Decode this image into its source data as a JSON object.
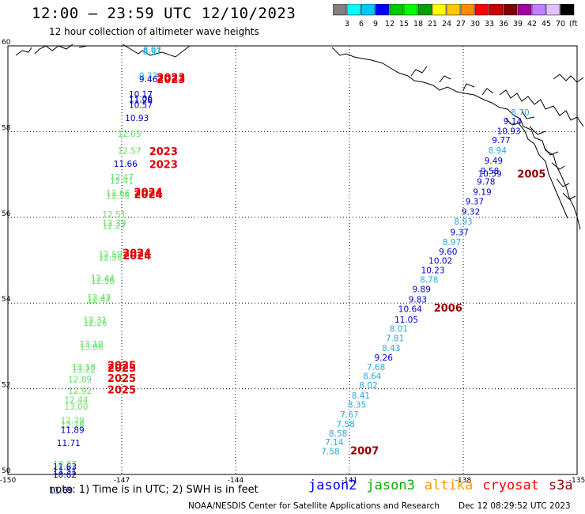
{
  "title": "12:00 – 23:59 UTC 12/10/2023",
  "subtitle": "12 hour collection of altimeter wave heights",
  "footer_note": "note:  1) Time is in UTC;  2) SWH is in feet",
  "credit": "NOAA/NESDIS Center for Satellite Applications and Research",
  "timestamp": "Dec 12 08:29:52 UTC 2023",
  "colors": {
    "jason2": "#0000cc",
    "jason3": "#2db82d",
    "altika": "#f08c00",
    "cryosat": "#e00000",
    "s3a": "#990000",
    "cyan": "#2aa8d8",
    "green": "#66e066",
    "grid": "#000000"
  },
  "legend": [
    {
      "label": "jason2",
      "color": "#0000ff"
    },
    {
      "label": "jason3",
      "color": "#00b000"
    },
    {
      "label": "altika",
      "color": "#ff9900"
    },
    {
      "label": "cryosat",
      "color": "#ff0000"
    },
    {
      "label": "s3a",
      "color": "#990000"
    }
  ],
  "colorbar": {
    "labels": [
      "3",
      "6",
      "9",
      "12",
      "15",
      "18",
      "21",
      "24",
      "27",
      "30",
      "33",
      "36",
      "39",
      "42",
      "45",
      "70",
      "(ft)"
    ],
    "colors": [
      "#808080",
      "#00ffff",
      "#00c8ff",
      "#0000ff",
      "#00c800",
      "#00ff00",
      "#00a000",
      "#ffff00",
      "#ffc800",
      "#ff8c00",
      "#ff0000",
      "#c80000",
      "#800000",
      "#a000a0",
      "#c080ff",
      "#e0c0ff",
      "#000000"
    ]
  },
  "chart_data": {
    "type": "scatter",
    "xlim": [
      -150,
      -135
    ],
    "ylim": [
      50,
      60
    ],
    "x_ticks": [
      "-150",
      "-147",
      "-144",
      "-141",
      "-138",
      "-135"
    ],
    "y_ticks": [
      "50",
      "52",
      "54",
      "56",
      "58",
      "60"
    ],
    "grid": "dotted",
    "units": "ft",
    "track_west_points": [
      {
        "lat": 59.8,
        "lon": -146.2,
        "v": "8.97",
        "c": "cyan"
      },
      {
        "lat": 59.83,
        "lon": -146.2,
        "v": "8.97",
        "c": "cyan"
      },
      {
        "lat": 59.23,
        "lon": -146.3,
        "v": "9.33",
        "c": "cyan"
      },
      {
        "lat": 59.15,
        "lon": -146.3,
        "v": "9.46",
        "c": "jason2"
      },
      {
        "lat": 58.8,
        "lon": -146.5,
        "v": "10.17",
        "c": "jason2"
      },
      {
        "lat": 58.7,
        "lon": -146.5,
        "v": "11.06",
        "c": "jason2"
      },
      {
        "lat": 58.66,
        "lon": -146.5,
        "v": "11.26",
        "c": "jason2"
      },
      {
        "lat": 58.55,
        "lon": -146.5,
        "v": "10.57",
        "c": "jason2"
      },
      {
        "lat": 58.25,
        "lon": -146.6,
        "v": "10.93",
        "c": "jason2"
      },
      {
        "lat": 57.88,
        "lon": -146.8,
        "v": "12.05",
        "c": "green"
      },
      {
        "lat": 57.48,
        "lon": -146.8,
        "v": "12.57",
        "c": "green"
      },
      {
        "lat": 57.18,
        "lon": -146.9,
        "v": "11.66",
        "c": "jason2"
      },
      {
        "lat": 56.86,
        "lon": -147.0,
        "v": "12.47",
        "c": "green"
      },
      {
        "lat": 56.78,
        "lon": -147.0,
        "v": "12.41",
        "c": "green"
      },
      {
        "lat": 56.49,
        "lon": -147.1,
        "v": "12.66",
        "c": "green"
      },
      {
        "lat": 56.43,
        "lon": -147.1,
        "v": "12.56",
        "c": "green"
      },
      {
        "lat": 56.0,
        "lon": -147.2,
        "v": "12.51",
        "c": "green"
      },
      {
        "lat": 55.79,
        "lon": -147.2,
        "v": "12.39",
        "c": "green"
      },
      {
        "lat": 55.73,
        "lon": -147.2,
        "v": "12.27",
        "c": "green"
      },
      {
        "lat": 55.06,
        "lon": -147.3,
        "v": "12.59",
        "c": "green"
      },
      {
        "lat": 54.99,
        "lon": -147.3,
        "v": "12.56",
        "c": "green"
      },
      {
        "lat": 54.51,
        "lon": -147.5,
        "v": "12.44",
        "c": "green"
      },
      {
        "lat": 54.45,
        "lon": -147.5,
        "v": "12.56",
        "c": "green"
      },
      {
        "lat": 54.06,
        "lon": -147.6,
        "v": "12.42",
        "c": "green"
      },
      {
        "lat": 54.0,
        "lon": -147.6,
        "v": "12.47",
        "c": "green"
      },
      {
        "lat": 53.53,
        "lon": -147.7,
        "v": "12.31",
        "c": "green"
      },
      {
        "lat": 53.47,
        "lon": -147.7,
        "v": "12.26",
        "c": "green"
      },
      {
        "lat": 52.97,
        "lon": -147.8,
        "v": "13.10",
        "c": "green"
      },
      {
        "lat": 52.91,
        "lon": -147.8,
        "v": "13.06",
        "c": "green"
      },
      {
        "lat": 52.44,
        "lon": -148.0,
        "v": "13.18",
        "c": "green"
      },
      {
        "lat": 52.38,
        "lon": -148.0,
        "v": "13.22",
        "c": "green"
      },
      {
        "lat": 52.15,
        "lon": -148.1,
        "v": "12.89",
        "c": "green"
      },
      {
        "lat": 51.88,
        "lon": -148.1,
        "v": "12.92",
        "c": "green"
      },
      {
        "lat": 51.67,
        "lon": -148.2,
        "v": "12.44",
        "c": "green"
      },
      {
        "lat": 51.51,
        "lon": -148.2,
        "v": "13.00",
        "c": "green"
      },
      {
        "lat": 51.19,
        "lon": -148.3,
        "v": "12.79",
        "c": "green"
      },
      {
        "lat": 51.09,
        "lon": -148.3,
        "v": "12.78",
        "c": "green"
      },
      {
        "lat": 50.97,
        "lon": -148.3,
        "v": "11.89",
        "c": "jason2"
      },
      {
        "lat": 50.66,
        "lon": -148.4,
        "v": "11.71",
        "c": "jason2"
      },
      {
        "lat": 50.17,
        "lon": -148.5,
        "v": "10.87",
        "c": "green"
      },
      {
        "lat": 50.11,
        "lon": -148.5,
        "v": "11.63",
        "c": "jason2"
      },
      {
        "lat": 50.01,
        "lon": -148.5,
        "v": "11.51",
        "c": "jason2"
      },
      {
        "lat": 49.93,
        "lon": -148.5,
        "v": "10.62",
        "c": "jason2"
      },
      {
        "lat": 49.56,
        "lon": -148.6,
        "v": "11.69",
        "c": "jason2"
      }
    ],
    "track_east_points": [
      {
        "lat": 58.38,
        "lon": -136.5,
        "v": "8.70",
        "c": "cyan"
      },
      {
        "lat": 58.17,
        "lon": -136.7,
        "v": "9.14",
        "c": "jason2"
      },
      {
        "lat": 57.94,
        "lon": -136.8,
        "v": "10.93",
        "c": "jason2"
      },
      {
        "lat": 57.73,
        "lon": -137.0,
        "v": "9.77",
        "c": "jason2"
      },
      {
        "lat": 57.49,
        "lon": -137.1,
        "v": "8.94",
        "c": "cyan"
      },
      {
        "lat": 57.25,
        "lon": -137.2,
        "v": "9.49",
        "c": "jason2"
      },
      {
        "lat": 57.01,
        "lon": -137.3,
        "v": "9.58",
        "c": "jason2"
      },
      {
        "lat": 56.95,
        "lon": -137.3,
        "v": "10.59",
        "c": "jason2"
      },
      {
        "lat": 56.76,
        "lon": -137.4,
        "v": "9.78",
        "c": "jason2"
      },
      {
        "lat": 56.52,
        "lon": -137.5,
        "v": "9.19",
        "c": "jason2"
      },
      {
        "lat": 56.3,
        "lon": -137.7,
        "v": "9.37",
        "c": "jason2"
      },
      {
        "lat": 56.06,
        "lon": -137.8,
        "v": "9.32",
        "c": "jason2"
      },
      {
        "lat": 55.83,
        "lon": -138.0,
        "v": "8.93",
        "c": "cyan"
      },
      {
        "lat": 55.58,
        "lon": -138.1,
        "v": "9.37",
        "c": "jason2"
      },
      {
        "lat": 55.35,
        "lon": -138.3,
        "v": "8.97",
        "c": "cyan"
      },
      {
        "lat": 55.13,
        "lon": -138.4,
        "v": "9.60",
        "c": "jason2"
      },
      {
        "lat": 54.92,
        "lon": -138.6,
        "v": "10.02",
        "c": "jason2"
      },
      {
        "lat": 54.7,
        "lon": -138.8,
        "v": "10.23",
        "c": "jason2"
      },
      {
        "lat": 54.47,
        "lon": -138.9,
        "v": "8.78",
        "c": "cyan"
      },
      {
        "lat": 54.25,
        "lon": -139.1,
        "v": "9.89",
        "c": "jason2"
      },
      {
        "lat": 54.01,
        "lon": -139.2,
        "v": "9.83",
        "c": "jason2"
      },
      {
        "lat": 53.79,
        "lon": -139.4,
        "v": "10.64",
        "c": "jason2"
      },
      {
        "lat": 53.54,
        "lon": -139.5,
        "v": "11.05",
        "c": "jason2"
      },
      {
        "lat": 53.33,
        "lon": -139.7,
        "v": "8.01",
        "c": "cyan"
      },
      {
        "lat": 53.11,
        "lon": -139.8,
        "v": "7.81",
        "c": "cyan"
      },
      {
        "lat": 52.88,
        "lon": -139.9,
        "v": "8.43",
        "c": "cyan"
      },
      {
        "lat": 52.66,
        "lon": -140.1,
        "v": "9.26",
        "c": "jason2"
      },
      {
        "lat": 52.44,
        "lon": -140.3,
        "v": "7.68",
        "c": "cyan"
      },
      {
        "lat": 52.22,
        "lon": -140.4,
        "v": "8.64",
        "c": "cyan"
      },
      {
        "lat": 52.01,
        "lon": -140.5,
        "v": "8.02",
        "c": "cyan"
      },
      {
        "lat": 51.77,
        "lon": -140.7,
        "v": "8.41",
        "c": "cyan"
      },
      {
        "lat": 51.56,
        "lon": -140.8,
        "v": "8.35",
        "c": "cyan"
      },
      {
        "lat": 51.33,
        "lon": -141.0,
        "v": "7.67",
        "c": "cyan"
      },
      {
        "lat": 51.11,
        "lon": -141.1,
        "v": "7.58",
        "c": "cyan"
      },
      {
        "lat": 50.89,
        "lon": -141.3,
        "v": "8.58",
        "c": "cyan"
      },
      {
        "lat": 50.68,
        "lon": -141.4,
        "v": "7.14",
        "c": "cyan"
      },
      {
        "lat": 50.47,
        "lon": -141.5,
        "v": "7.58",
        "c": "cyan"
      }
    ],
    "time_labels": [
      {
        "lat": 59.18,
        "lon": -145.7,
        "t": "2023",
        "c": "cryosat"
      },
      {
        "lat": 59.13,
        "lon": -145.7,
        "t": "2023",
        "c": "cryosat"
      },
      {
        "lat": 57.45,
        "lon": -145.9,
        "t": "2023",
        "c": "cryosat"
      },
      {
        "lat": 57.15,
        "lon": -145.9,
        "t": "2023",
        "c": "cryosat"
      },
      {
        "lat": 56.5,
        "lon": -146.3,
        "t": "2024",
        "c": "cryosat"
      },
      {
        "lat": 56.45,
        "lon": -146.3,
        "t": "2024",
        "c": "cryosat"
      },
      {
        "lat": 55.08,
        "lon": -146.6,
        "t": "2024",
        "c": "cryosat"
      },
      {
        "lat": 55.02,
        "lon": -146.6,
        "t": "2024",
        "c": "cryosat"
      },
      {
        "lat": 52.46,
        "lon": -147.0,
        "t": "2025",
        "c": "cryosat"
      },
      {
        "lat": 52.4,
        "lon": -147.0,
        "t": "2025",
        "c": "cryosat"
      },
      {
        "lat": 52.16,
        "lon": -147.0,
        "t": "2025",
        "c": "cryosat"
      },
      {
        "lat": 51.89,
        "lon": -147.0,
        "t": "2025",
        "c": "cryosat"
      },
      {
        "lat": 56.93,
        "lon": -136.2,
        "t": "2005",
        "c": "s3a"
      },
      {
        "lat": 53.8,
        "lon": -138.4,
        "t": "2006",
        "c": "s3a"
      },
      {
        "lat": 50.47,
        "lon": -140.6,
        "t": "2007",
        "c": "s3a"
      }
    ]
  }
}
